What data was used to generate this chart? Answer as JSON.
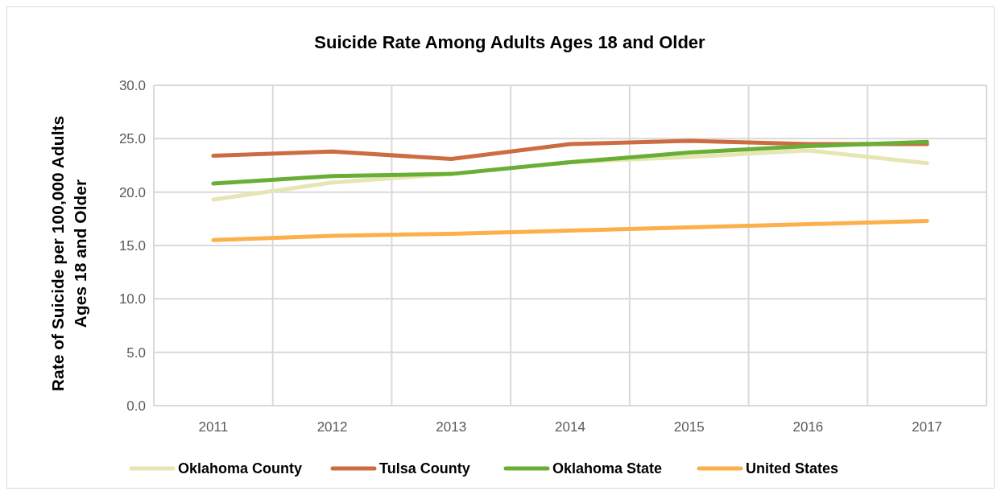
{
  "chart_data": {
    "type": "line",
    "title": "Suicide Rate Among Adults Ages 18 and Older",
    "ylabel": "Rate of Suicide per 100,000 Adults Ages 18 and Older",
    "categories": [
      "2011",
      "2012",
      "2013",
      "2014",
      "2015",
      "2016",
      "2017"
    ],
    "ylim": [
      0,
      30
    ],
    "yticks": [
      {
        "value": 0,
        "label": "0.0"
      },
      {
        "value": 5,
        "label": "5.0"
      },
      {
        "value": 10,
        "label": "10.0"
      },
      {
        "value": 15,
        "label": "15.0"
      },
      {
        "value": 20,
        "label": "20.0"
      },
      {
        "value": 25,
        "label": "25.0"
      },
      {
        "value": 30,
        "label": "30.0"
      }
    ],
    "grid": true,
    "legend": "bottom",
    "marker": "none",
    "line_style": "solid",
    "series": [
      {
        "name": "Oklahoma County",
        "color": "#e6e6b4",
        "values": [
          19.3,
          20.9,
          21.7,
          22.8,
          23.3,
          23.9,
          22.7
        ]
      },
      {
        "name": "Tulsa County",
        "color": "#cb6d41",
        "values": [
          23.4,
          23.8,
          23.1,
          24.5,
          24.8,
          24.5,
          24.5
        ]
      },
      {
        "name": "Oklahoma State",
        "color": "#6aaf35",
        "values": [
          20.8,
          21.5,
          21.7,
          22.8,
          23.7,
          24.3,
          24.7
        ]
      },
      {
        "name": "United States",
        "color": "#fbb04b",
        "values": [
          15.5,
          15.9,
          16.1,
          16.4,
          16.7,
          17.0,
          17.3
        ]
      }
    ]
  }
}
